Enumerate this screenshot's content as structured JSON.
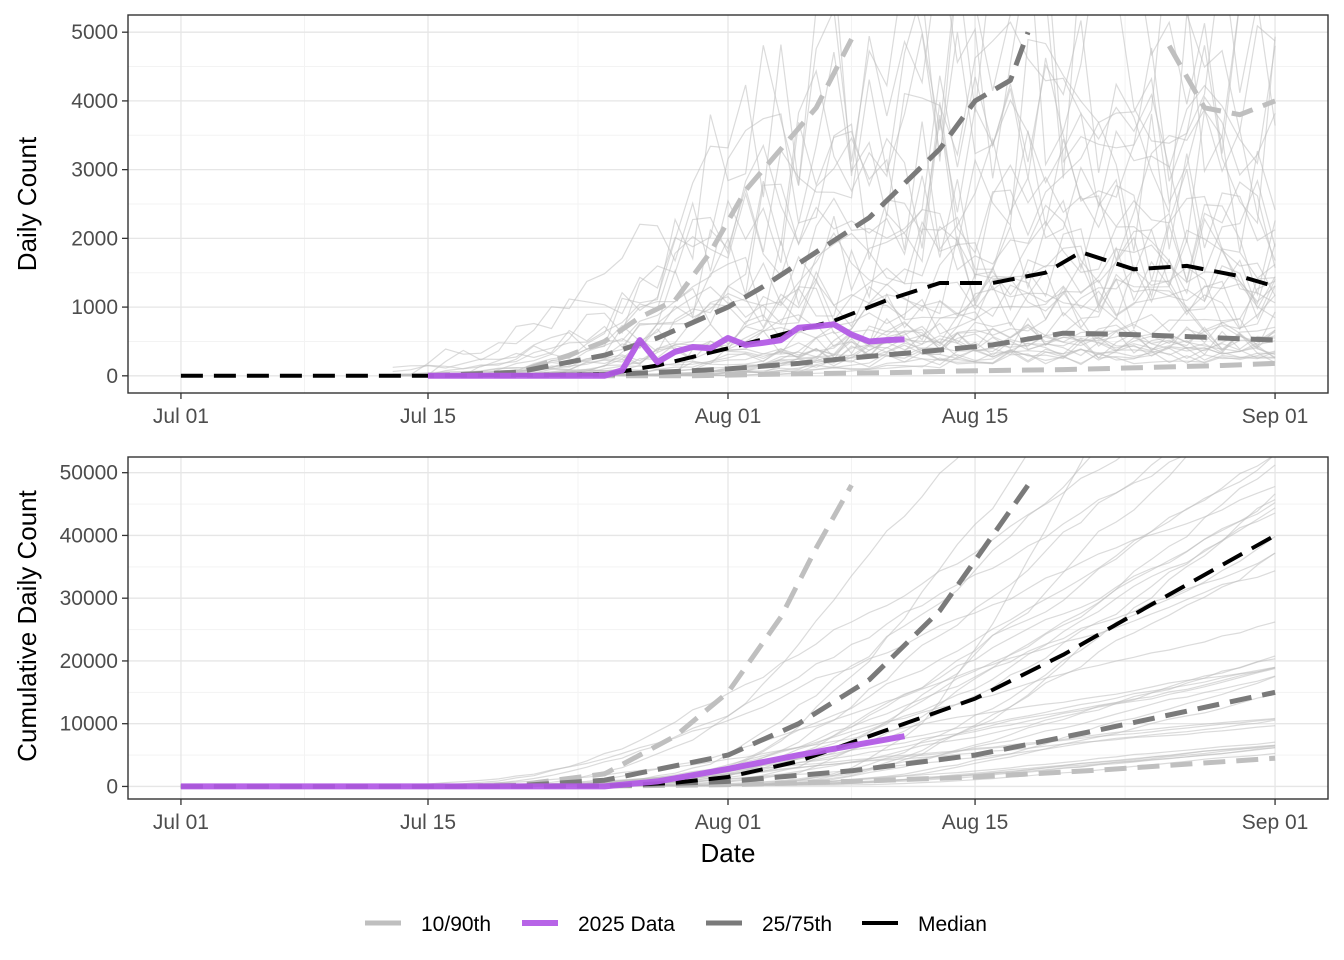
{
  "chart_data": [
    {
      "type": "line",
      "panel": "top",
      "xlabel": "",
      "ylabel": "Daily Count",
      "x_ticks": [
        "Jul 01",
        "Jul 15",
        "Aug 01",
        "Aug 15",
        "Sep 01"
      ],
      "x_tick_dates": [
        "2000-07-01",
        "2000-07-15",
        "2000-08-01",
        "2000-08-15",
        "2000-09-01"
      ],
      "xlim": [
        "2000-06-28",
        "2000-09-04"
      ],
      "y_ticks": [
        "0",
        "1000",
        "2000",
        "3000",
        "4000",
        "5000"
      ],
      "y_tick_values": [
        0,
        1000,
        2000,
        3000,
        4000,
        5000
      ],
      "ylim": [
        -250,
        5250
      ],
      "grid": true,
      "series": [
        {
          "name": "10/90th",
          "style": "light-dashed",
          "x": [
            "2000-07-15",
            "2000-07-20",
            "2000-07-25",
            "2000-07-28",
            "2000-07-30",
            "2000-08-01",
            "2000-08-03",
            "2000-08-05",
            "2000-08-08",
            "2000-08-11",
            "2000-08-14",
            "2000-08-17",
            "2000-08-20",
            "2000-08-23",
            "2000-08-26",
            "2000-08-29",
            "2000-09-01"
          ],
          "values": [
            0,
            0,
            0,
            0,
            0,
            10,
            20,
            30,
            40,
            50,
            70,
            80,
            90,
            110,
            130,
            150,
            180
          ]
        },
        {
          "name": "10/90th",
          "style": "light-dashed",
          "x": [
            "2000-07-15",
            "2000-07-20",
            "2000-07-23",
            "2000-07-25",
            "2000-07-27",
            "2000-07-29",
            "2000-07-31",
            "2000-08-02",
            "2000-08-04",
            "2000-08-06",
            "2000-08-08"
          ],
          "values": [
            0,
            50,
            300,
            500,
            850,
            1100,
            1800,
            2700,
            3300,
            3900,
            4900
          ]
        },
        {
          "name": "10/90th",
          "style": "light-dashed",
          "x": [
            "2000-08-26",
            "2000-08-28",
            "2000-08-30",
            "2000-09-01"
          ],
          "values": [
            4800,
            3900,
            3800,
            4000
          ]
        },
        {
          "name": "25/75th",
          "style": "mid-dashed",
          "x": [
            "2000-07-15",
            "2000-07-20",
            "2000-07-25",
            "2000-07-28",
            "2000-08-01",
            "2000-08-05",
            "2000-08-08",
            "2000-08-12",
            "2000-08-16",
            "2000-08-20",
            "2000-08-24",
            "2000-08-28",
            "2000-09-01"
          ],
          "values": [
            0,
            0,
            20,
            50,
            100,
            180,
            260,
            350,
            450,
            620,
            600,
            560,
            520
          ]
        },
        {
          "name": "25/75th",
          "style": "mid-dashed",
          "x": [
            "2000-07-15",
            "2000-07-20",
            "2000-07-25",
            "2000-07-28",
            "2000-08-01",
            "2000-08-03",
            "2000-08-06",
            "2000-08-09",
            "2000-08-11",
            "2000-08-13",
            "2000-08-15",
            "2000-08-17",
            "2000-08-18"
          ],
          "values": [
            0,
            50,
            300,
            550,
            1000,
            1300,
            1800,
            2300,
            2800,
            3300,
            4000,
            4300,
            5000
          ]
        },
        {
          "name": "Median",
          "style": "black-dashed",
          "x": [
            "2000-07-01",
            "2000-07-15",
            "2000-07-25",
            "2000-07-28",
            "2000-08-01",
            "2000-08-04",
            "2000-08-07",
            "2000-08-10",
            "2000-08-13",
            "2000-08-16",
            "2000-08-19",
            "2000-08-21",
            "2000-08-24",
            "2000-08-27",
            "2000-08-30",
            "2000-09-01"
          ],
          "values": [
            0,
            0,
            20,
            150,
            400,
            600,
            800,
            1100,
            1350,
            1350,
            1500,
            1800,
            1550,
            1600,
            1450,
            1300
          ]
        },
        {
          "name": "2025 Data",
          "style": "purple-solid",
          "x": [
            "2000-07-15",
            "2000-07-20",
            "2000-07-25",
            "2000-07-26",
            "2000-07-27",
            "2000-07-28",
            "2000-07-29",
            "2000-07-30",
            "2000-07-31",
            "2000-08-01",
            "2000-08-02",
            "2000-08-03",
            "2000-08-04",
            "2000-08-05",
            "2000-08-06",
            "2000-08-07",
            "2000-08-08",
            "2000-08-09",
            "2000-08-10",
            "2000-08-11"
          ],
          "values": [
            0,
            0,
            0,
            80,
            520,
            200,
            350,
            420,
            400,
            550,
            450,
            480,
            520,
            700,
            720,
            750,
            600,
            500,
            520,
            530
          ]
        }
      ]
    },
    {
      "type": "line",
      "panel": "bottom",
      "xlabel": "Date",
      "ylabel": "Cumulative Daily Count",
      "x_ticks": [
        "Jul 01",
        "Jul 15",
        "Aug 01",
        "Aug 15",
        "Sep 01"
      ],
      "x_tick_dates": [
        "2000-07-01",
        "2000-07-15",
        "2000-08-01",
        "2000-08-15",
        "2000-09-01"
      ],
      "xlim": [
        "2000-06-28",
        "2000-09-04"
      ],
      "y_ticks": [
        "0",
        "10000",
        "20000",
        "30000",
        "40000",
        "50000"
      ],
      "y_tick_values": [
        0,
        10000,
        20000,
        30000,
        40000,
        50000
      ],
      "ylim": [
        -2000,
        52500
      ],
      "grid": true,
      "series": [
        {
          "name": "10/90th",
          "style": "light-dashed",
          "x": [
            "2000-07-01",
            "2000-07-20",
            "2000-07-25",
            "2000-08-01",
            "2000-08-08",
            "2000-08-15",
            "2000-08-22",
            "2000-09-01"
          ],
          "values": [
            0,
            0,
            50,
            300,
            800,
            1500,
            2600,
            4500
          ]
        },
        {
          "name": "10/90th",
          "style": "light-dashed",
          "x": [
            "2000-07-15",
            "2000-07-20",
            "2000-07-25",
            "2000-07-29",
            "2000-08-01",
            "2000-08-04",
            "2000-08-06",
            "2000-08-08"
          ],
          "values": [
            0,
            200,
            2000,
            8000,
            15000,
            27000,
            38000,
            48000
          ]
        },
        {
          "name": "25/75th",
          "style": "mid-dashed",
          "x": [
            "2000-07-01",
            "2000-07-20",
            "2000-07-25",
            "2000-08-01",
            "2000-08-08",
            "2000-08-15",
            "2000-08-22",
            "2000-09-01"
          ],
          "values": [
            0,
            0,
            100,
            800,
            2500,
            5000,
            9000,
            15000
          ]
        },
        {
          "name": "25/75th",
          "style": "mid-dashed",
          "x": [
            "2000-07-15",
            "2000-07-20",
            "2000-07-25",
            "2000-08-01",
            "2000-08-05",
            "2000-08-09",
            "2000-08-13",
            "2000-08-16",
            "2000-08-18"
          ],
          "values": [
            0,
            100,
            1000,
            5000,
            10000,
            17000,
            28000,
            40000,
            48000
          ]
        },
        {
          "name": "Median",
          "style": "black-dashed",
          "x": [
            "2000-07-01",
            "2000-07-20",
            "2000-07-25",
            "2000-07-29",
            "2000-08-01",
            "2000-08-05",
            "2000-08-10",
            "2000-08-15",
            "2000-08-20",
            "2000-08-25",
            "2000-09-01"
          ],
          "values": [
            0,
            0,
            100,
            600,
            1500,
            4000,
            9000,
            14000,
            21000,
            29000,
            40000
          ]
        },
        {
          "name": "2025 Data",
          "style": "purple-solid",
          "x": [
            "2000-07-01",
            "2000-07-20",
            "2000-07-25",
            "2000-07-28",
            "2000-08-01",
            "2000-08-05",
            "2000-08-08",
            "2000-08-11"
          ],
          "values": [
            0,
            0,
            0,
            800,
            2800,
            5000,
            6500,
            8000
          ]
        }
      ]
    }
  ],
  "legend": {
    "position": "bottom",
    "items": [
      {
        "label": "10/90th",
        "color": "#bfbfbf",
        "style": "light-dashed"
      },
      {
        "label": "2025 Data",
        "color": "#b35ce6",
        "style": "purple-solid"
      },
      {
        "label": "25/75th",
        "color": "#7a7a7a",
        "style": "mid-dashed"
      },
      {
        "label": "Median",
        "color": "#000000",
        "style": "black-dashed"
      }
    ]
  },
  "colors": {
    "light_dashed": "#bfbfbf",
    "mid_dashed": "#7a7a7a",
    "median": "#000000",
    "data_2025": "#b35ce6",
    "background_lines": "#bdbdbd",
    "grid_major": "#e6e6e6",
    "grid_minor": "#f3f3f3",
    "panel_border": "#333333"
  }
}
